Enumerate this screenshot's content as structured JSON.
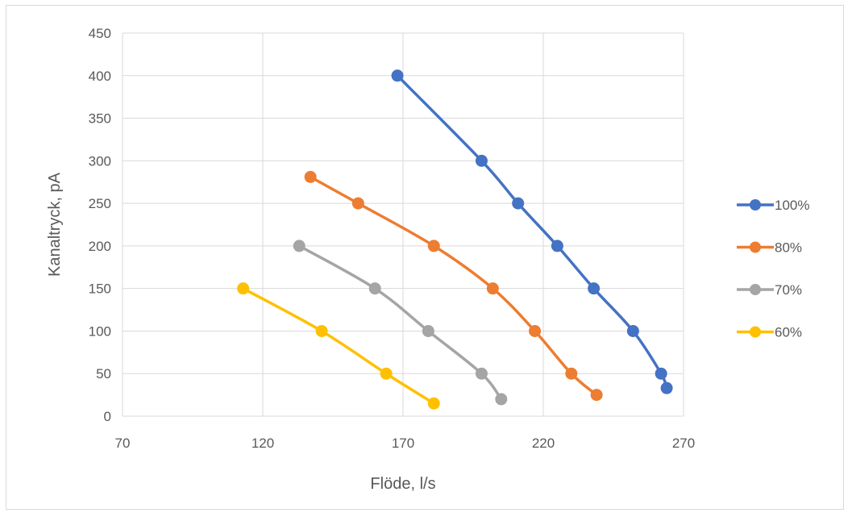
{
  "chart_data": {
    "type": "scatter",
    "xlabel": "Flöde, l/s",
    "ylabel": "Kanaltryck, pA",
    "xlim": [
      70,
      270
    ],
    "ylim": [
      0,
      450
    ],
    "xticks": [
      70,
      120,
      170,
      220,
      270
    ],
    "yticks": [
      0,
      50,
      100,
      150,
      200,
      250,
      300,
      350,
      400,
      450
    ],
    "grid": true,
    "legend_position": "right",
    "smooth_lines": true,
    "series": [
      {
        "name": "100%",
        "color": "#4472C4",
        "points": [
          [
            168,
            400
          ],
          [
            198,
            300
          ],
          [
            211,
            250
          ],
          [
            225,
            200
          ],
          [
            238,
            150
          ],
          [
            252,
            100
          ],
          [
            262,
            50
          ],
          [
            264,
            33
          ]
        ]
      },
      {
        "name": "80%",
        "color": "#ED7D31",
        "points": [
          [
            137,
            281
          ],
          [
            154,
            250
          ],
          [
            181,
            200
          ],
          [
            202,
            150
          ],
          [
            217,
            100
          ],
          [
            230,
            50
          ],
          [
            239,
            25
          ]
        ]
      },
      {
        "name": "70%",
        "color": "#A5A5A5",
        "points": [
          [
            133,
            200
          ],
          [
            160,
            150
          ],
          [
            179,
            100
          ],
          [
            198,
            50
          ],
          [
            205,
            20
          ]
        ]
      },
      {
        "name": "60%",
        "color": "#FFC000",
        "points": [
          [
            113,
            150
          ],
          [
            141,
            100
          ],
          [
            164,
            50
          ],
          [
            181,
            15
          ]
        ]
      }
    ]
  }
}
